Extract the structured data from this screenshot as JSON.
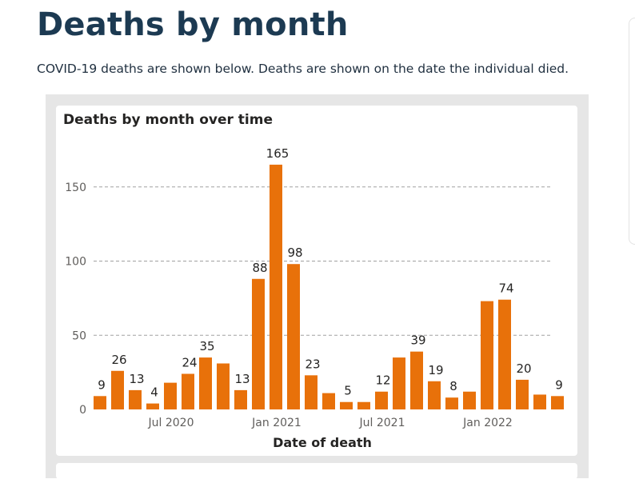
{
  "page": {
    "heading": "Deaths by month",
    "intro": "COVID-19 deaths are shown below. Deaths are shown on the date the individual died."
  },
  "colors": {
    "bar": "#e8710a",
    "heading": "#1c3a52",
    "grid": "#a0a0a0"
  },
  "chart_data": {
    "type": "bar",
    "title": "Deaths by month over time",
    "xlabel": "Date of death",
    "ylabel": "",
    "ylim": [
      0,
      180
    ],
    "yticks": [
      0,
      50,
      100,
      150
    ],
    "grid": true,
    "categories": [
      "Mar 2020",
      "Apr 2020",
      "May 2020",
      "Jun 2020",
      "Jul 2020",
      "Aug 2020",
      "Sep 2020",
      "Oct 2020",
      "Nov 2020",
      "Dec 2020",
      "Jan 2021",
      "Feb 2021",
      "Mar 2021",
      "Apr 2021",
      "May 2021",
      "Jun 2021",
      "Jul 2021",
      "Aug 2021",
      "Sep 2021",
      "Oct 2021",
      "Nov 2021",
      "Dec 2021",
      "Jan 2022",
      "Feb 2022",
      "Mar 2022",
      "Apr 2022",
      "May 2022"
    ],
    "values": [
      9,
      26,
      13,
      4,
      18,
      24,
      35,
      31,
      13,
      88,
      165,
      98,
      23,
      11,
      5,
      5,
      12,
      35,
      39,
      19,
      8,
      12,
      73,
      74,
      20,
      10,
      9
    ],
    "labeled": [
      true,
      true,
      true,
      true,
      false,
      true,
      true,
      false,
      true,
      true,
      true,
      true,
      true,
      false,
      true,
      false,
      true,
      false,
      true,
      true,
      true,
      false,
      false,
      true,
      true,
      false,
      true
    ],
    "xticks": [
      {
        "index": 4,
        "label": "Jul 2020"
      },
      {
        "index": 10,
        "label": "Jan 2021"
      },
      {
        "index": 16,
        "label": "Jul 2021"
      },
      {
        "index": 22,
        "label": "Jan 2022"
      }
    ]
  }
}
